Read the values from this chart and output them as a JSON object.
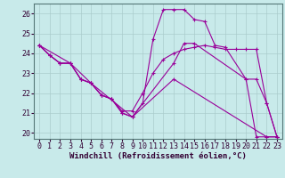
{
  "background_color": "#c8eaea",
  "grid_color": "#b8d8d8",
  "line_color": "#990099",
  "marker_color": "#990099",
  "xlabel": "Windchill (Refroidissement éolien,°C)",
  "xlabel_fontsize": 6.5,
  "tick_fontsize": 6.0,
  "xlim": [
    -0.5,
    23.5
  ],
  "ylim": [
    19.7,
    26.5
  ],
  "yticks": [
    20,
    21,
    22,
    23,
    24,
    25,
    26
  ],
  "xticks": [
    0,
    1,
    2,
    3,
    4,
    5,
    6,
    7,
    8,
    9,
    10,
    11,
    12,
    13,
    14,
    15,
    16,
    17,
    18,
    19,
    20,
    21,
    22,
    23
  ],
  "lines": [
    {
      "x": [
        0,
        1,
        2,
        3,
        4,
        5,
        6,
        7,
        8,
        9,
        10,
        11,
        12,
        13,
        14,
        15,
        16,
        17,
        18,
        20,
        21,
        22,
        23
      ],
      "y": [
        24.4,
        23.9,
        23.5,
        23.5,
        22.7,
        22.5,
        21.9,
        21.7,
        21.0,
        20.8,
        21.5,
        24.7,
        26.2,
        26.2,
        26.2,
        25.7,
        25.6,
        24.4,
        24.3,
        22.7,
        19.8,
        19.8,
        19.8
      ]
    },
    {
      "x": [
        0,
        1,
        2,
        3,
        5,
        9,
        13,
        14,
        15,
        20,
        21,
        22,
        23
      ],
      "y": [
        24.4,
        23.9,
        23.5,
        23.5,
        22.5,
        20.8,
        23.5,
        24.5,
        24.5,
        22.7,
        22.7,
        21.5,
        19.8
      ]
    },
    {
      "x": [
        0,
        1,
        2,
        3,
        4,
        5,
        6,
        7,
        8,
        9,
        10,
        11,
        12,
        13,
        14,
        15,
        16,
        17,
        18,
        19,
        20,
        21,
        22,
        23
      ],
      "y": [
        24.4,
        23.9,
        23.5,
        23.5,
        22.7,
        22.5,
        21.9,
        21.7,
        21.1,
        21.1,
        22.0,
        23.0,
        23.7,
        24.0,
        24.2,
        24.3,
        24.4,
        24.3,
        24.2,
        24.2,
        24.2,
        24.2,
        21.5,
        19.8
      ]
    },
    {
      "x": [
        0,
        3,
        4,
        5,
        6,
        7,
        8,
        9,
        13,
        22,
        23
      ],
      "y": [
        24.4,
        23.5,
        22.7,
        22.5,
        21.9,
        21.7,
        21.0,
        20.8,
        22.7,
        19.8,
        19.8
      ]
    }
  ]
}
